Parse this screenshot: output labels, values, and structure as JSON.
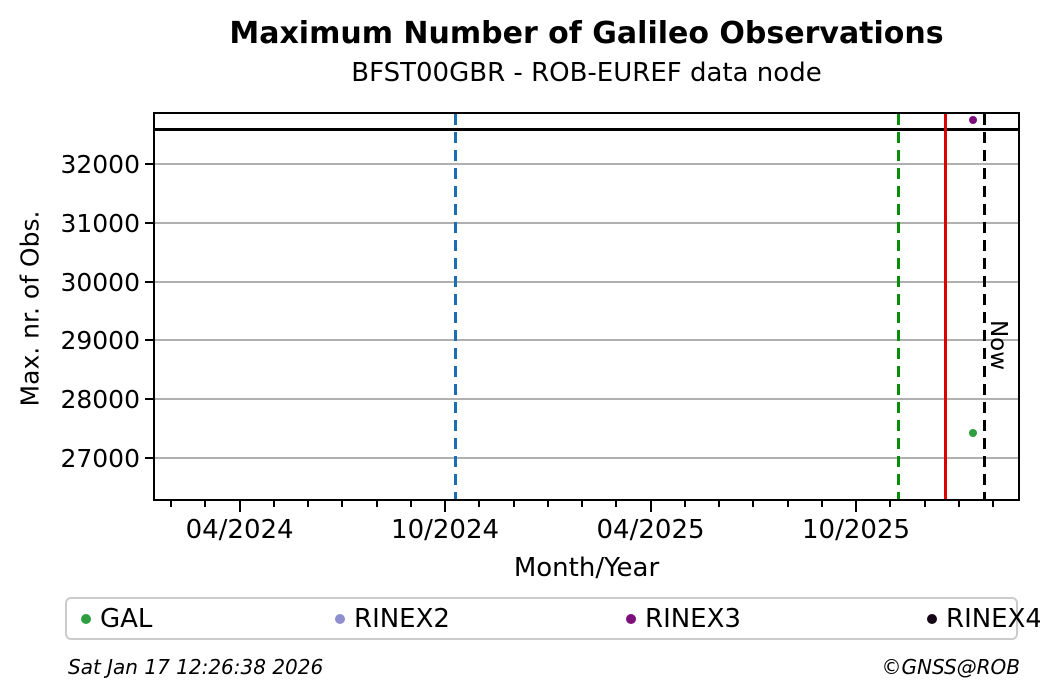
{
  "chart": {
    "title": "Maximum Number of Galileo Observations",
    "subtitle": "BFST00GBR - ROB-EUREF data node",
    "ylabel": "Max. nr. of Obs.",
    "xlabel": "Month/Year",
    "now_label": "Now"
  },
  "footer": {
    "timestamp": "Sat Jan 17 12:26:38 2026",
    "credit": "©GNSS@ROB"
  },
  "colors": {
    "grid": "#b0b0b0",
    "axis": "#000000",
    "blue_line": "#1c6db2",
    "green_line": "#098c09",
    "red_line": "#dd0000",
    "now_line": "#000000"
  },
  "chart_data": {
    "type": "scatter",
    "title": "Maximum Number of Galileo Observations",
    "subtitle": "BFST00GBR - ROB-EUREF data node",
    "xlabel": "Month/Year",
    "ylabel": "Max. nr. of Obs.",
    "grid": true,
    "ylim": [
      26300,
      32850
    ],
    "yticks": [
      27000,
      28000,
      29000,
      30000,
      31000,
      32000
    ],
    "xlim_months_since_jan2024": [
      0.53,
      25.73
    ],
    "xticks": [
      {
        "month": 3,
        "label": "04/2024"
      },
      {
        "month": 9,
        "label": "10/2024"
      },
      {
        "month": 15,
        "label": "04/2025"
      },
      {
        "month": 21,
        "label": "10/2025"
      }
    ],
    "minor_xtick_months": [
      1,
      2,
      3,
      4,
      5,
      6,
      7,
      8,
      9,
      10,
      11,
      12,
      13,
      14,
      15,
      16,
      17,
      18,
      19,
      20,
      21,
      22,
      23,
      24,
      25
    ],
    "hline": {
      "value": 32600,
      "color": "#000000"
    },
    "vlines": [
      {
        "month": 9.3,
        "style": "dashed",
        "color": "#1c6db2"
      },
      {
        "month": 22.23,
        "style": "dashed",
        "color": "#098c09"
      },
      {
        "month": 23.6,
        "style": "solid",
        "color": "#dd0000"
      },
      {
        "month": 24.75,
        "style": "dashed",
        "color": "#000000",
        "label": "Now"
      }
    ],
    "points": [
      {
        "series": "RINEX3",
        "month": 24.42,
        "value": 32740,
        "color": "#7c0f7c"
      },
      {
        "series": "GAL",
        "month": 24.42,
        "value": 27430,
        "color": "#2e9e40"
      }
    ],
    "legend": {
      "position": "bottom",
      "items": [
        {
          "label": "GAL",
          "color": "#2e9e40"
        },
        {
          "label": "RINEX2",
          "color": "#8f8fd0"
        },
        {
          "label": "RINEX3",
          "color": "#7c0f7c"
        },
        {
          "label": "RINEX4",
          "color": "#160516"
        }
      ]
    }
  }
}
